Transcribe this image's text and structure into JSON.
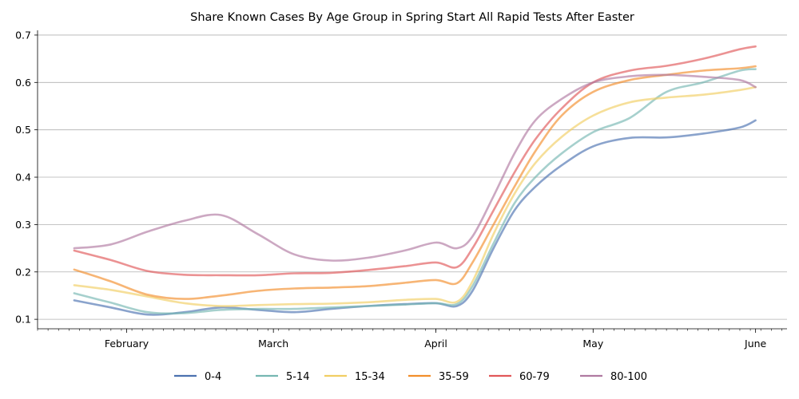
{
  "chart_data": {
    "type": "line",
    "title": "Share Known Cases By Age Group in Spring Start All Rapid Tests After Easter",
    "xlabel": "",
    "ylabel": "",
    "x_range": [
      "2021-01-15",
      "2021-06-07"
    ],
    "ylim": [
      0.08,
      0.71
    ],
    "y_ticks": [
      0.1,
      0.2,
      0.3,
      0.4,
      0.5,
      0.6,
      0.7
    ],
    "y_tick_labels": [
      "0.1",
      "0.2",
      "0.3",
      "0.4",
      "0.5",
      "0.6",
      "0.7"
    ],
    "x_ticks": [
      "2021-02-01",
      "2021-03-01",
      "2021-04-01",
      "2021-05-01",
      "2021-06-01"
    ],
    "x_tick_labels": [
      "February",
      "March",
      "April",
      "May",
      "June"
    ],
    "grid": "horizontal",
    "legend": "bottom-center",
    "x": [
      "2021-01-22",
      "2021-01-29",
      "2021-02-05",
      "2021-02-12",
      "2021-02-19",
      "2021-02-26",
      "2021-03-05",
      "2021-03-12",
      "2021-03-19",
      "2021-03-26",
      "2021-04-01",
      "2021-04-05",
      "2021-04-08",
      "2021-04-12",
      "2021-04-16",
      "2021-04-20",
      "2021-04-25",
      "2021-05-01",
      "2021-05-08",
      "2021-05-15",
      "2021-05-22",
      "2021-05-29",
      "2021-06-01"
    ],
    "series": [
      {
        "name": "0-4",
        "color": "#4c72b0",
        "values": [
          0.14,
          0.125,
          0.11,
          0.115,
          0.125,
          0.12,
          0.115,
          0.122,
          0.128,
          0.132,
          0.134,
          0.128,
          0.16,
          0.25,
          0.33,
          0.38,
          0.425,
          0.465,
          0.483,
          0.484,
          0.492,
          0.505,
          0.52
        ]
      },
      {
        "name": "5-14",
        "color": "#76b7b2",
        "values": [
          0.155,
          0.135,
          0.115,
          0.113,
          0.12,
          0.122,
          0.122,
          0.125,
          0.128,
          0.131,
          0.134,
          0.132,
          0.17,
          0.26,
          0.345,
          0.4,
          0.45,
          0.495,
          0.525,
          0.58,
          0.6,
          0.625,
          0.628
        ]
      },
      {
        "name": "15-34",
        "color": "#f1ce63",
        "values": [
          0.172,
          0.162,
          0.148,
          0.134,
          0.128,
          0.13,
          0.132,
          0.133,
          0.136,
          0.141,
          0.143,
          0.137,
          0.18,
          0.28,
          0.365,
          0.43,
          0.485,
          0.53,
          0.558,
          0.568,
          0.574,
          0.584,
          0.59
        ]
      },
      {
        "name": "35-59",
        "color": "#f28e2b",
        "values": [
          0.205,
          0.18,
          0.152,
          0.143,
          0.15,
          0.16,
          0.165,
          0.167,
          0.17,
          0.177,
          0.183,
          0.176,
          0.22,
          0.3,
          0.38,
          0.455,
          0.53,
          0.58,
          0.605,
          0.616,
          0.625,
          0.63,
          0.634
        ]
      },
      {
        "name": "60-79",
        "color": "#e15759",
        "values": [
          0.245,
          0.225,
          0.202,
          0.194,
          0.193,
          0.193,
          0.197,
          0.198,
          0.204,
          0.212,
          0.22,
          0.21,
          0.25,
          0.33,
          0.41,
          0.48,
          0.545,
          0.6,
          0.625,
          0.635,
          0.65,
          0.67,
          0.676
        ]
      },
      {
        "name": "80-100",
        "color": "#b07aa1",
        "values": [
          0.25,
          0.258,
          0.285,
          0.308,
          0.32,
          0.28,
          0.237,
          0.224,
          0.23,
          0.245,
          0.262,
          0.25,
          0.275,
          0.36,
          0.45,
          0.52,
          0.565,
          0.6,
          0.613,
          0.616,
          0.612,
          0.605,
          0.59
        ]
      }
    ]
  }
}
